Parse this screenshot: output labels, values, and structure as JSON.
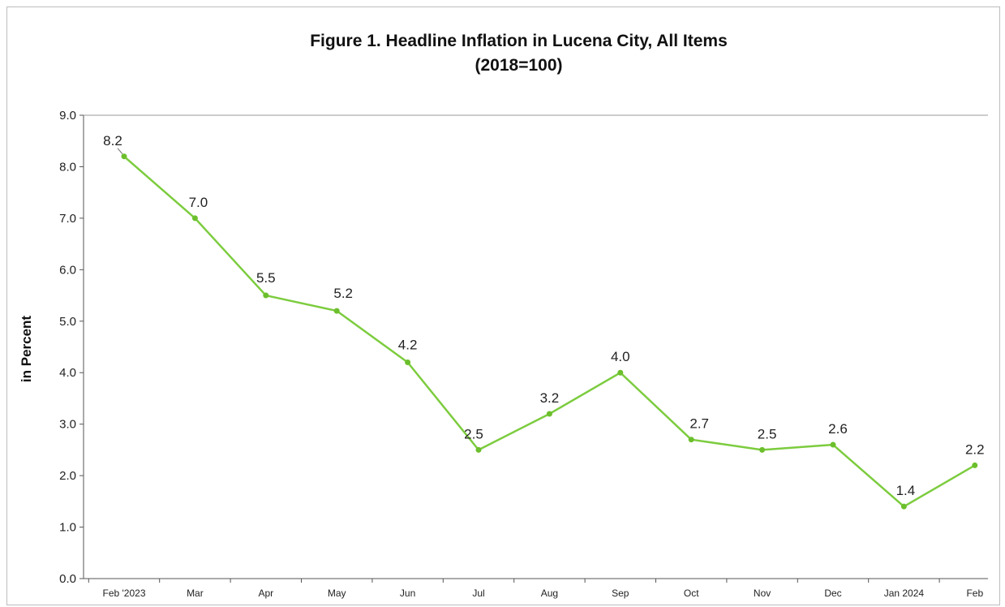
{
  "chart_data": {
    "type": "line",
    "title": "Figure 1. Headline Inflation in Lucena City, All Items",
    "subtitle": "(2018=100)",
    "xlabel": "",
    "ylabel": "in Percent",
    "categories": [
      "Feb '2023",
      "Mar",
      "Apr",
      "May",
      "Jun",
      "Jul",
      "Aug",
      "Sep",
      "Oct",
      "Nov",
      "Dec",
      "Jan 2024",
      "Feb"
    ],
    "series": [
      {
        "values": [
          8.2,
          7.0,
          5.5,
          5.2,
          4.2,
          2.5,
          3.2,
          4.0,
          2.7,
          2.5,
          2.6,
          1.4,
          2.2
        ],
        "labels": [
          "8.2",
          "7.0",
          "5.5",
          "5.2",
          "4.2",
          "2.5",
          "3.2",
          "4.0",
          "2.7",
          "2.5",
          "2.6",
          "1.4",
          "2.2"
        ]
      }
    ],
    "ylim": [
      0,
      9
    ],
    "yticks": [
      "0.0",
      "1.0",
      "2.0",
      "3.0",
      "4.0",
      "5.0",
      "6.0",
      "7.0",
      "8.0",
      "9.0"
    ],
    "grid": false,
    "legend": "none",
    "line_color": "#7ccc3e",
    "marker_color": "#6cbf2c"
  }
}
